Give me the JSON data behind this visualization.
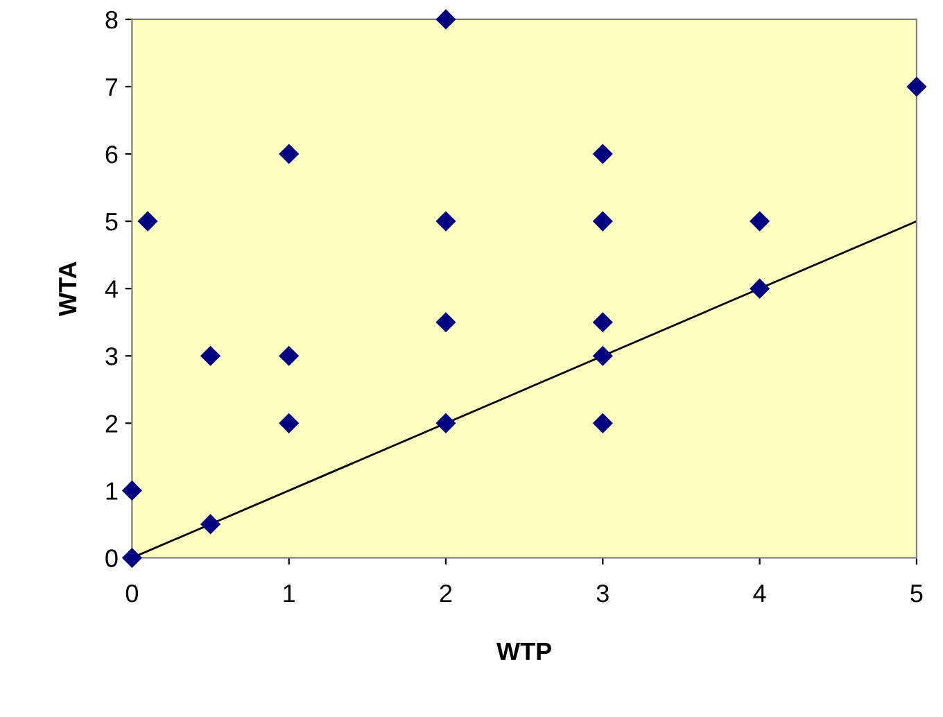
{
  "chart_data": {
    "type": "scatter",
    "xlabel": "WTP",
    "ylabel": "WTA",
    "xlim": [
      0,
      5
    ],
    "ylim": [
      0,
      8
    ],
    "xticks": [
      0,
      1,
      2,
      3,
      4,
      5
    ],
    "yticks": [
      0,
      1,
      2,
      3,
      4,
      5,
      6,
      7,
      8
    ],
    "grid": false,
    "series": [
      {
        "color": "#000080",
        "marker": "diamond",
        "x": [
          0,
          0,
          0.1,
          0.5,
          0.5,
          1,
          1,
          1,
          2,
          2,
          2,
          2,
          3,
          3,
          3,
          3,
          3,
          4,
          4,
          5
        ],
        "values": [
          0,
          1,
          5,
          3,
          0.5,
          6,
          3,
          2,
          8,
          5,
          3.5,
          2,
          6,
          5,
          3.5,
          3,
          2,
          5,
          4,
          7
        ]
      },
      {
        "type": "line",
        "color": "#000000",
        "marker": "none",
        "line_style": "solid",
        "x": [
          0,
          5
        ],
        "values": [
          0,
          5
        ]
      }
    ]
  }
}
